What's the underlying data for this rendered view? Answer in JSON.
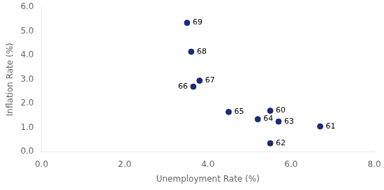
{
  "chart_data": {
    "type": "scatter",
    "xlabel": "Unemployment Rate (%)",
    "ylabel": "Inflation Rate (%)",
    "x": [
      5.5,
      6.7,
      5.5,
      5.7,
      5.2,
      4.5,
      3.65,
      3.8,
      3.6,
      3.5
    ],
    "values": [
      1.7,
      1.05,
      0.35,
      1.25,
      1.35,
      1.65,
      2.7,
      2.95,
      4.15,
      5.35
    ],
    "annotations": [
      "60",
      "61",
      "62",
      "63",
      "64",
      "65",
      "66",
      "67",
      "68",
      "69"
    ],
    "color": "#1B2A7B",
    "xlim": [
      0.0,
      8.0
    ],
    "ylim": [
      0.0,
      6.0
    ],
    "xticks": [
      {
        "value": 0,
        "label": "0.0"
      },
      {
        "value": 2,
        "label": "2.0"
      },
      {
        "value": 4,
        "label": "4.0"
      },
      {
        "value": 6,
        "label": "6.0"
      },
      {
        "value": 8,
        "label": "8.0"
      }
    ],
    "yticks": [
      {
        "value": 0,
        "label": "0.0"
      },
      {
        "value": 1,
        "label": "1.0"
      },
      {
        "value": 2,
        "label": "2.0"
      },
      {
        "value": 3,
        "label": "3.0"
      },
      {
        "value": 4,
        "label": "4.0"
      },
      {
        "value": 5,
        "label": "5.0"
      },
      {
        "value": 6,
        "label": "6.0"
      }
    ],
    "grid": false
  }
}
